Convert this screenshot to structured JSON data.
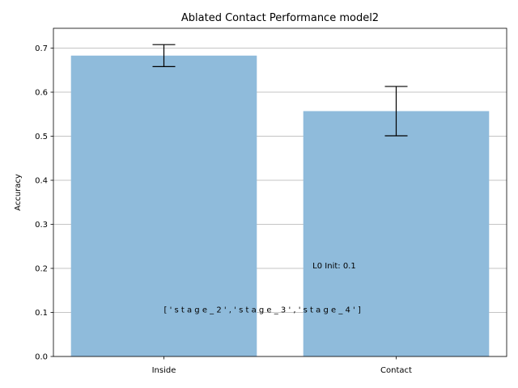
{
  "chart_data": {
    "type": "bar",
    "title": "Ablated Contact Performance model2",
    "xlabel": "",
    "ylabel": "Accuracy",
    "categories": [
      "Inside",
      "Contact"
    ],
    "values": [
      0.683,
      0.557
    ],
    "errors": [
      0.025,
      0.056
    ],
    "ylim": [
      0,
      0.745
    ],
    "yticks": [
      0.0,
      0.1,
      0.2,
      0.3,
      0.4,
      0.5,
      0.6,
      0.7
    ],
    "ytick_labels": [
      "0.0",
      "0.1",
      "0.2",
      "0.3",
      "0.4",
      "0.5",
      "0.6",
      "0.7"
    ],
    "grid": "y",
    "bar_color": "#8fbbdb",
    "annotations": [
      {
        "text": "L0 Init: 0.1",
        "x": 0.64,
        "y": 0.2
      },
      {
        "text": "[ ' s t a g e _ 2 ' ,   ' s t a g e _ 3 ' ,   ' s t a g e _ 4 ' ]",
        "x": 0.0,
        "y": 0.1
      }
    ]
  }
}
